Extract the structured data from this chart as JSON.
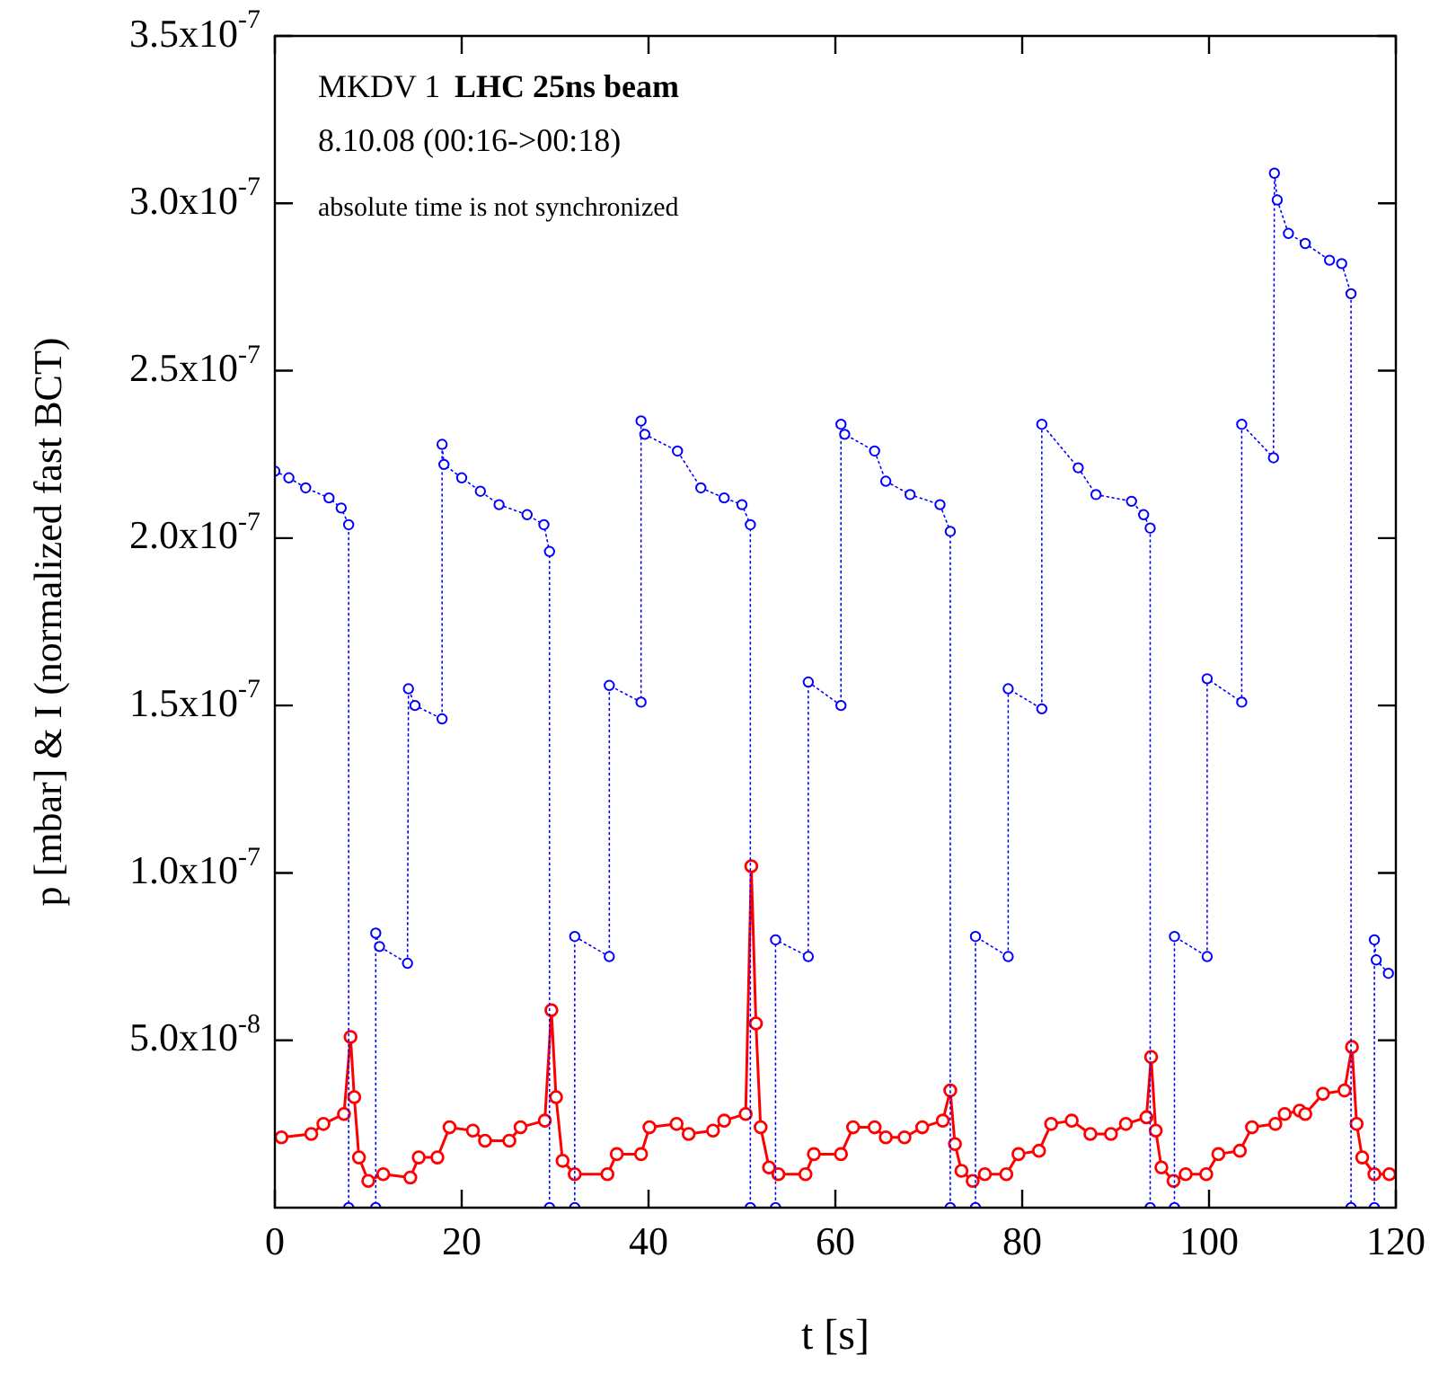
{
  "chart_data": {
    "type": "line",
    "xlabel": "t [s]",
    "ylabel": "p [mbar] & I (normalized fast BCT)",
    "annotations": [
      "MKDV 1",
      "LHC 25ns beam",
      "8.10.08 (00:16->00:18)",
      "absolute time is not synchronized"
    ],
    "xlim": [
      0,
      120
    ],
    "xticks": [
      0,
      20,
      40,
      60,
      80,
      100,
      120
    ],
    "ylim": [
      0,
      3.5e-07
    ],
    "yticks": [
      {
        "value": 5e-08,
        "label": "5.0x10$^{-8}$"
      },
      {
        "value": 1e-07,
        "label": "1.0x10$^{-7}$"
      },
      {
        "value": 1.5e-07,
        "label": "1.5x10$^{-7}$"
      },
      {
        "value": 2e-07,
        "label": "2.0x10$^{-7}$"
      },
      {
        "value": 2.5e-07,
        "label": "2.5x10$^{-7}$"
      },
      {
        "value": 3e-07,
        "label": "3.0x10$^{-7}$"
      },
      {
        "value": 3.5e-07,
        "label": "3.5x10$^{-7}$"
      }
    ],
    "grid": false,
    "legend": false,
    "marker": "circle",
    "series": [
      {
        "color": "#0000ff",
        "line_style": "dotted",
        "x": [
          0,
          1.5,
          3.3,
          5.8,
          7.1,
          7.9,
          7.9,
          10.8,
          10.8,
          11.2,
          14.2,
          14.3,
          15,
          17.9,
          17.9,
          18.1,
          20,
          22,
          24,
          27,
          28.8,
          29.4,
          29.4,
          32.1,
          32.1,
          35.8,
          35.8,
          39.2,
          39.2,
          39.6,
          43.1,
          45.6,
          48.1,
          50,
          50.9,
          50.9,
          53.6,
          53.6,
          57.1,
          57.1,
          60.6,
          60.6,
          61,
          64.2,
          65.4,
          68,
          71.2,
          72.3,
          72.3,
          75,
          75,
          78.5,
          78.5,
          82.1,
          82.1,
          86,
          87.9,
          91.7,
          93,
          93.7,
          93.7,
          96.3,
          96.3,
          99.8,
          99.8,
          103.5,
          103.5,
          106.9,
          107,
          107.3,
          108.5,
          110.3,
          112.9,
          114.2,
          115.2,
          115.2,
          117.7,
          117.7,
          117.9,
          119.2
        ],
        "values": [
          2.2e-07,
          2.18e-07,
          2.15e-07,
          2.12e-07,
          2.09e-07,
          2.04e-07,
          0,
          0,
          8.2e-08,
          7.8e-08,
          7.3e-08,
          1.55e-07,
          1.5e-07,
          1.46e-07,
          2.28e-07,
          2.22e-07,
          2.18e-07,
          2.14e-07,
          2.1e-07,
          2.07e-07,
          2.04e-07,
          1.96e-07,
          0,
          0,
          8.1e-08,
          7.5e-08,
          1.56e-07,
          1.51e-07,
          2.35e-07,
          2.31e-07,
          2.26e-07,
          2.15e-07,
          2.12e-07,
          2.1e-07,
          2.04e-07,
          0,
          0,
          8e-08,
          7.5e-08,
          1.57e-07,
          1.5e-07,
          2.34e-07,
          2.31e-07,
          2.26e-07,
          2.17e-07,
          2.13e-07,
          2.1e-07,
          2.02e-07,
          0,
          0,
          8.1e-08,
          7.5e-08,
          1.55e-07,
          1.49e-07,
          2.34e-07,
          2.21e-07,
          2.13e-07,
          2.11e-07,
          2.07e-07,
          2.03e-07,
          0,
          0,
          8.1e-08,
          7.5e-08,
          1.58e-07,
          1.51e-07,
          2.34e-07,
          2.24e-07,
          3.09e-07,
          3.01e-07,
          2.91e-07,
          2.88e-07,
          2.83e-07,
          2.82e-07,
          2.73e-07,
          0,
          0,
          8e-08,
          7.4e-08,
          7e-08
        ]
      },
      {
        "color": "#ff0000",
        "line_style": "solid",
        "x": [
          0.7,
          3.9,
          5.2,
          7.4,
          8.1,
          8.5,
          9,
          10,
          11.6,
          14.5,
          15.4,
          17.4,
          18.7,
          21.2,
          22.5,
          25.1,
          26.3,
          28.9,
          29.6,
          30.1,
          30.8,
          32.1,
          35.6,
          36.6,
          39.2,
          40.1,
          43,
          44.3,
          46.9,
          48.1,
          50.4,
          51,
          51.5,
          52,
          52.9,
          53.9,
          56.8,
          57.7,
          60.6,
          61.9,
          64.2,
          65.4,
          67.4,
          69.3,
          71.5,
          72.3,
          72.8,
          73.5,
          74.7,
          76,
          78.3,
          79.6,
          81.8,
          83.1,
          85.3,
          87.3,
          89.5,
          91.1,
          93.3,
          93.8,
          94.3,
          94.9,
          96.2,
          97.5,
          99.7,
          101,
          103.3,
          104.6,
          107.1,
          108.1,
          109.7,
          110.3,
          112.2,
          114.5,
          115.3,
          115.8,
          116.4,
          117.7,
          119.3
        ],
        "values": [
          2.1e-08,
          2.2e-08,
          2.5e-08,
          2.8e-08,
          5.1e-08,
          3.3e-08,
          1.5e-08,
          8e-09,
          1e-08,
          9e-09,
          1.5e-08,
          1.5e-08,
          2.4e-08,
          2.3e-08,
          2e-08,
          2e-08,
          2.4e-08,
          2.6e-08,
          5.9e-08,
          3.3e-08,
          1.4e-08,
          1e-08,
          1e-08,
          1.6e-08,
          1.6e-08,
          2.4e-08,
          2.5e-08,
          2.2e-08,
          2.3e-08,
          2.6e-08,
          2.8e-08,
          1.02e-07,
          5.5e-08,
          2.4e-08,
          1.2e-08,
          1e-08,
          1e-08,
          1.6e-08,
          1.6e-08,
          2.4e-08,
          2.4e-08,
          2.1e-08,
          2.1e-08,
          2.4e-08,
          2.6e-08,
          3.5e-08,
          1.9e-08,
          1.1e-08,
          8e-09,
          1e-08,
          1e-08,
          1.6e-08,
          1.7e-08,
          2.5e-08,
          2.6e-08,
          2.2e-08,
          2.2e-08,
          2.5e-08,
          2.7e-08,
          4.5e-08,
          2.3e-08,
          1.2e-08,
          8e-09,
          1e-08,
          1e-08,
          1.6e-08,
          1.7e-08,
          2.4e-08,
          2.5e-08,
          2.8e-08,
          2.9e-08,
          2.8e-08,
          3.4e-08,
          3.5e-08,
          4.8e-08,
          2.5e-08,
          1.5e-08,
          1e-08,
          1e-08
        ]
      }
    ]
  }
}
